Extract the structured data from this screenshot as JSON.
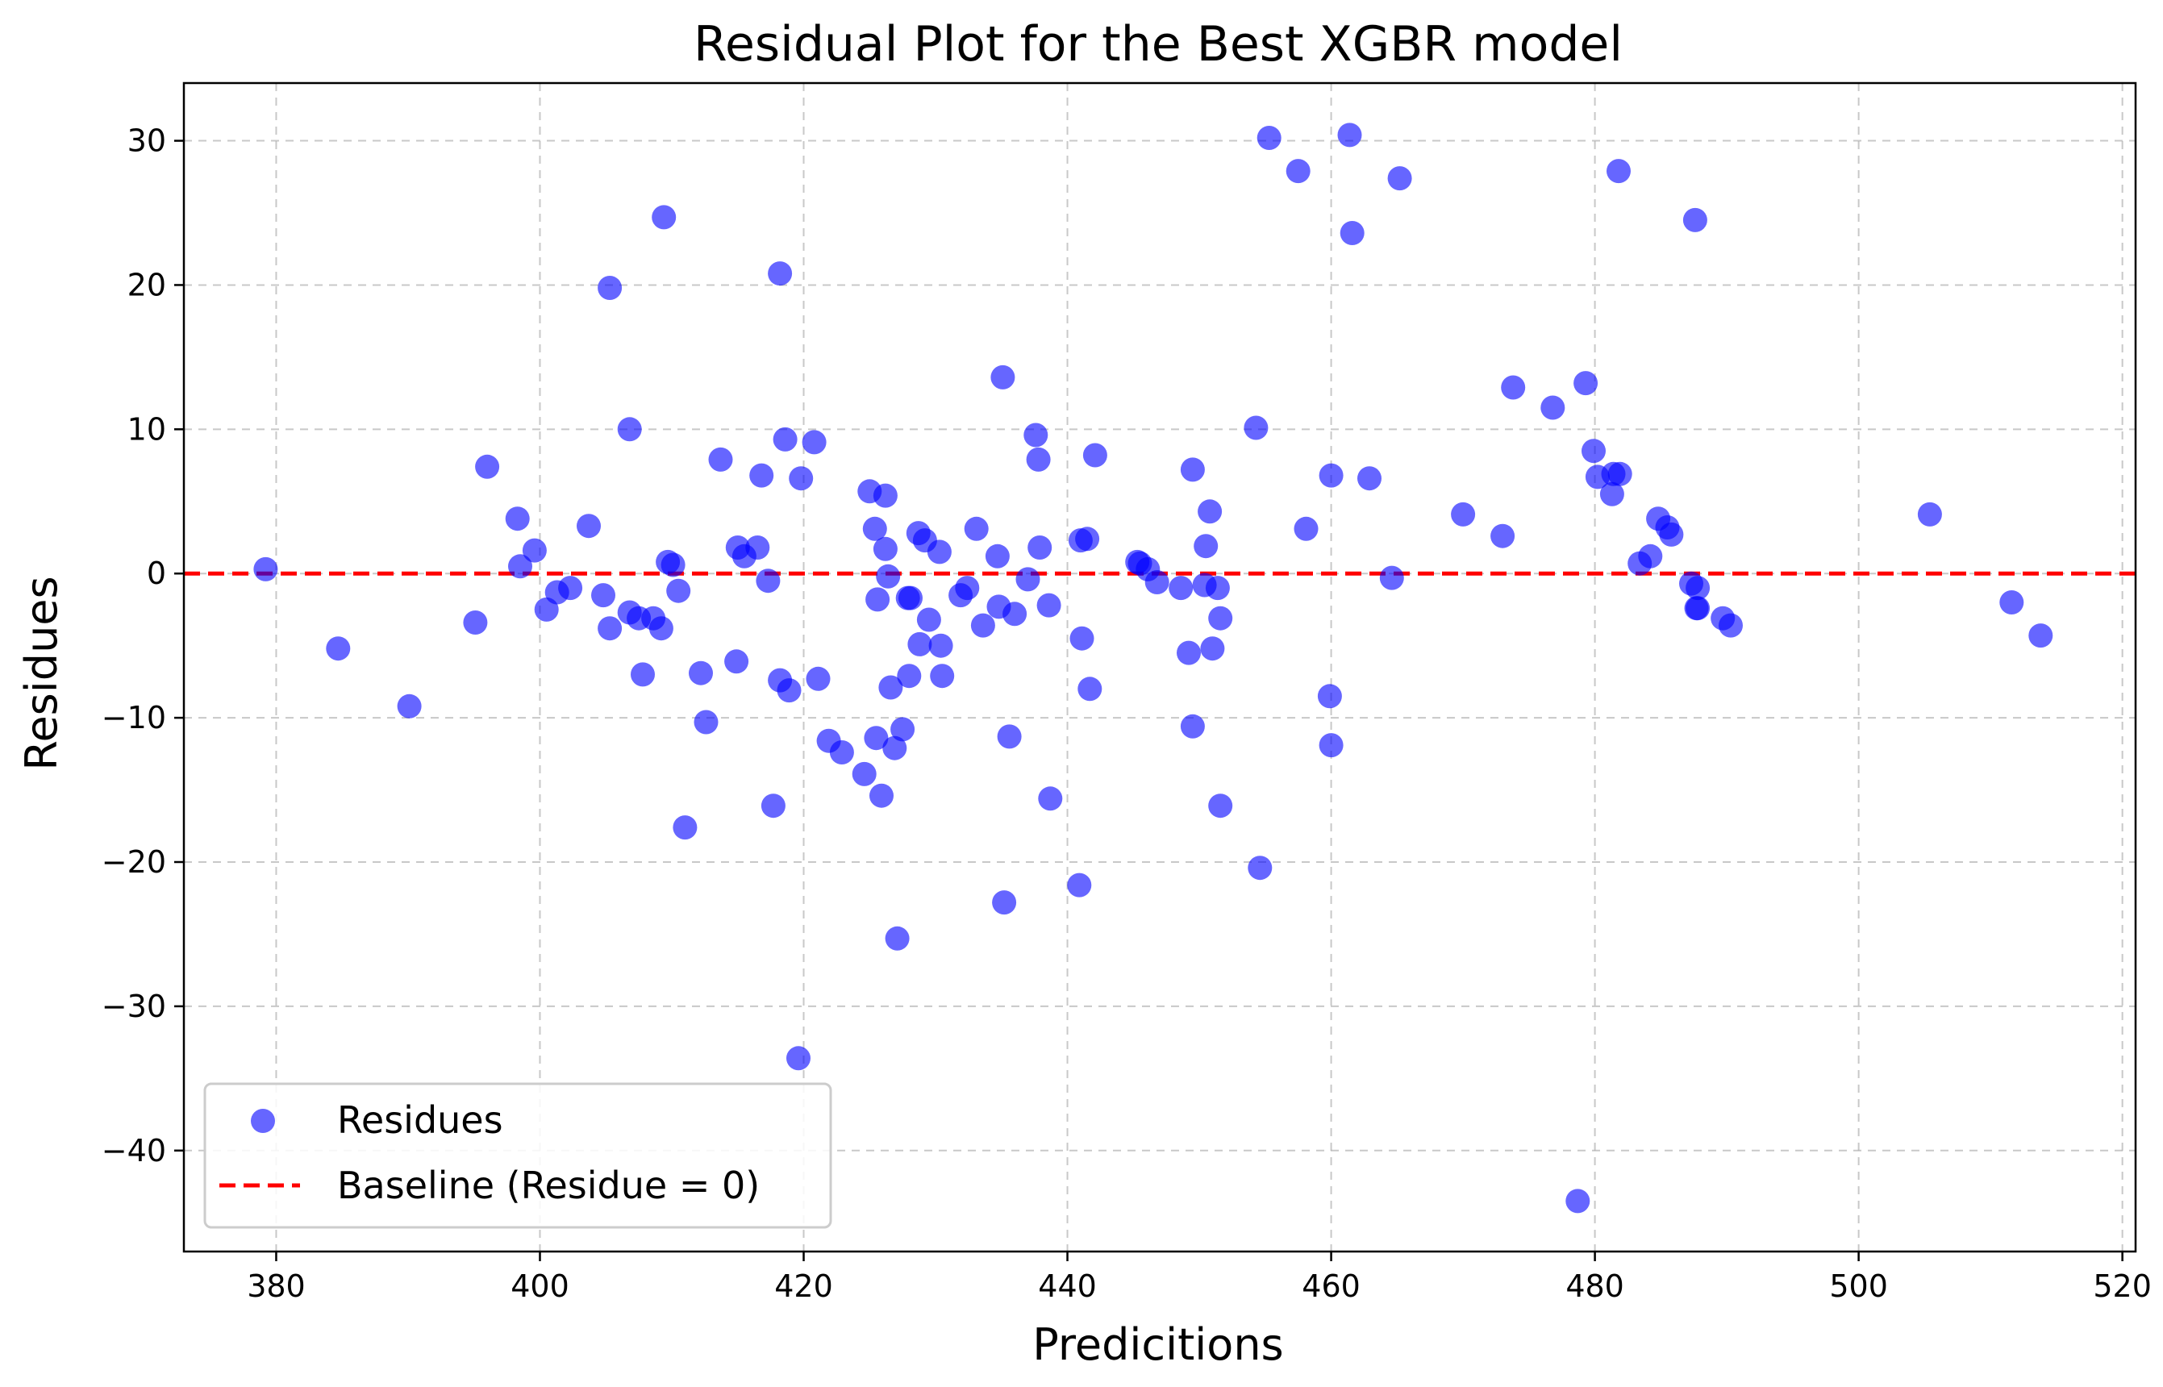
{
  "chart_data": {
    "type": "scatter",
    "title": "Residual Plot for the Best XGBR model",
    "xlabel": "Predicitions",
    "ylabel": "Residues",
    "xlim": [
      373,
      521
    ],
    "ylim": [
      -47,
      34
    ],
    "xticks": [
      380,
      400,
      420,
      440,
      460,
      480,
      500,
      520
    ],
    "yticks": [
      -40,
      -30,
      -20,
      -10,
      0,
      10,
      20,
      30
    ],
    "grid": true,
    "legend_position": "lower-left",
    "baseline": {
      "name": "Baseline (Residue = 0)",
      "y": 0,
      "color": "#ff0000",
      "style": "dashed"
    },
    "series": [
      {
        "name": "Residues",
        "color": "#0000ff",
        "points": [
          [
            379.2,
            0.3
          ],
          [
            384.7,
            -5.2
          ],
          [
            390.1,
            -9.2
          ],
          [
            395.1,
            -3.4
          ],
          [
            396.0,
            7.4
          ],
          [
            398.3,
            3.8
          ],
          [
            398.5,
            0.5
          ],
          [
            399.6,
            1.6
          ],
          [
            400.5,
            -2.5
          ],
          [
            401.3,
            -1.3
          ],
          [
            402.3,
            -1.0
          ],
          [
            403.7,
            3.3
          ],
          [
            404.8,
            -1.5
          ],
          [
            405.3,
            19.8
          ],
          [
            405.3,
            -3.8
          ],
          [
            406.8,
            10.0
          ],
          [
            406.8,
            -2.7
          ],
          [
            407.5,
            -3.1
          ],
          [
            407.8,
            -7.0
          ],
          [
            408.6,
            -3.1
          ],
          [
            409.2,
            -3.8
          ],
          [
            409.4,
            24.7
          ],
          [
            409.7,
            0.8
          ],
          [
            410.1,
            0.6
          ],
          [
            410.5,
            -1.2
          ],
          [
            411.0,
            -17.6
          ],
          [
            412.2,
            -6.9
          ],
          [
            412.6,
            -10.3
          ],
          [
            413.7,
            7.9
          ],
          [
            414.9,
            -6.1
          ],
          [
            415.0,
            1.8
          ],
          [
            415.5,
            1.2
          ],
          [
            416.5,
            1.8
          ],
          [
            416.8,
            6.8
          ],
          [
            417.3,
            -0.5
          ],
          [
            417.7,
            -16.1
          ],
          [
            418.2,
            -7.4
          ],
          [
            418.2,
            20.8
          ],
          [
            418.6,
            9.3
          ],
          [
            418.9,
            -8.1
          ],
          [
            419.6,
            -33.6
          ],
          [
            419.8,
            6.6
          ],
          [
            420.8,
            9.1
          ],
          [
            421.1,
            -7.3
          ],
          [
            421.9,
            -11.6
          ],
          [
            422.9,
            -12.4
          ],
          [
            424.6,
            -13.9
          ],
          [
            425.0,
            5.7
          ],
          [
            425.4,
            3.1
          ],
          [
            425.5,
            -11.4
          ],
          [
            425.6,
            -1.8
          ],
          [
            425.9,
            -15.4
          ],
          [
            426.2,
            5.4
          ],
          [
            426.2,
            1.7
          ],
          [
            426.4,
            -0.2
          ],
          [
            426.6,
            -7.9
          ],
          [
            426.9,
            -12.1
          ],
          [
            427.1,
            -25.3
          ],
          [
            427.5,
            -10.8
          ],
          [
            427.9,
            -1.7
          ],
          [
            428.0,
            -7.1
          ],
          [
            428.1,
            -1.7
          ],
          [
            428.7,
            2.8
          ],
          [
            428.8,
            -4.9
          ],
          [
            429.2,
            2.3
          ],
          [
            429.5,
            -3.2
          ],
          [
            430.3,
            1.5
          ],
          [
            430.4,
            -5.0
          ],
          [
            430.5,
            -7.1
          ],
          [
            431.9,
            -1.5
          ],
          [
            432.4,
            -1.0
          ],
          [
            433.1,
            3.1
          ],
          [
            433.6,
            -3.6
          ],
          [
            434.7,
            1.2
          ],
          [
            434.8,
            -2.3
          ],
          [
            435.1,
            13.6
          ],
          [
            435.2,
            -22.8
          ],
          [
            435.6,
            -11.3
          ],
          [
            436.0,
            -2.8
          ],
          [
            437.0,
            -0.4
          ],
          [
            437.6,
            9.6
          ],
          [
            437.8,
            7.9
          ],
          [
            437.9,
            1.8
          ],
          [
            438.6,
            -2.2
          ],
          [
            438.7,
            -15.6
          ],
          [
            440.9,
            -21.6
          ],
          [
            441.0,
            2.3
          ],
          [
            441.1,
            -4.5
          ],
          [
            441.5,
            2.4
          ],
          [
            441.7,
            -8.0
          ],
          [
            442.1,
            8.2
          ],
          [
            445.3,
            0.8
          ],
          [
            445.5,
            0.7
          ],
          [
            446.1,
            0.3
          ],
          [
            446.8,
            -0.6
          ],
          [
            448.6,
            -1.0
          ],
          [
            449.2,
            -5.5
          ],
          [
            449.5,
            7.2
          ],
          [
            449.5,
            -10.6
          ],
          [
            450.4,
            -0.8
          ],
          [
            450.5,
            1.9
          ],
          [
            450.8,
            4.3
          ],
          [
            451.0,
            -5.2
          ],
          [
            451.4,
            -1.0
          ],
          [
            451.6,
            -3.1
          ],
          [
            451.6,
            -16.1
          ],
          [
            454.3,
            10.1
          ],
          [
            454.6,
            -20.4
          ],
          [
            455.3,
            30.2
          ],
          [
            457.5,
            27.9
          ],
          [
            458.1,
            3.1
          ],
          [
            459.9,
            -8.5
          ],
          [
            460.0,
            -11.9
          ],
          [
            460.0,
            6.8
          ],
          [
            461.4,
            30.4
          ],
          [
            461.6,
            23.6
          ],
          [
            462.9,
            6.6
          ],
          [
            464.6,
            -0.3
          ],
          [
            465.2,
            27.4
          ],
          [
            470.0,
            4.1
          ],
          [
            473.0,
            2.6
          ],
          [
            473.8,
            12.9
          ],
          [
            476.8,
            11.5
          ],
          [
            478.7,
            -43.5
          ],
          [
            479.3,
            13.2
          ],
          [
            479.9,
            8.5
          ],
          [
            480.2,
            6.7
          ],
          [
            481.3,
            5.5
          ],
          [
            481.4,
            6.9
          ],
          [
            481.8,
            27.9
          ],
          [
            481.9,
            6.9
          ],
          [
            483.4,
            0.7
          ],
          [
            484.2,
            1.2
          ],
          [
            484.8,
            3.8
          ],
          [
            485.5,
            3.2
          ],
          [
            485.8,
            2.7
          ],
          [
            487.3,
            -0.7
          ],
          [
            487.6,
            24.5
          ],
          [
            487.7,
            -2.4
          ],
          [
            487.8,
            -1.0
          ],
          [
            487.8,
            -2.4
          ],
          [
            489.7,
            -3.1
          ],
          [
            490.3,
            -3.6
          ],
          [
            505.4,
            4.1
          ],
          [
            511.6,
            -2.0
          ],
          [
            513.8,
            -4.3
          ]
        ]
      }
    ]
  }
}
